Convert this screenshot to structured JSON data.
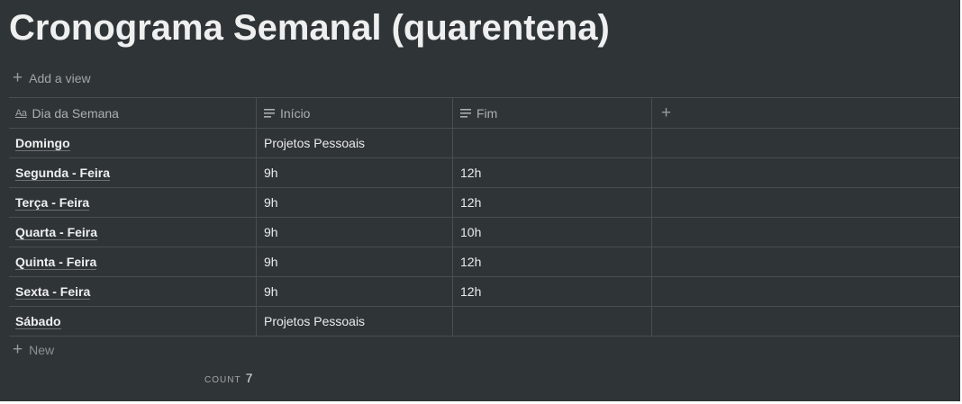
{
  "page": {
    "title": "Cronograma Semanal (quarentena)"
  },
  "toolbar": {
    "add_view_label": "Add a view"
  },
  "table": {
    "columns": [
      {
        "label": "Dia da Semana",
        "icon": "title-aa-icon"
      },
      {
        "label": "Início",
        "icon": "text-lines-icon"
      },
      {
        "label": "Fim",
        "icon": "text-lines-icon"
      }
    ],
    "rows": [
      {
        "dia": "Domingo",
        "inicio": "Projetos Pessoais",
        "fim": ""
      },
      {
        "dia": "Segunda - Feira",
        "inicio": "9h",
        "fim": "12h"
      },
      {
        "dia": "Terça - Feira",
        "inicio": "9h",
        "fim": "12h"
      },
      {
        "dia": "Quarta - Feira",
        "inicio": "9h",
        "fim": "10h"
      },
      {
        "dia": "Quinta - Feira",
        "inicio": "9h",
        "fim": "12h"
      },
      {
        "dia": "Sexta - Feira",
        "inicio": "9h",
        "fim": "12h"
      },
      {
        "dia": "Sábado",
        "inicio": "Projetos Pessoais",
        "fim": ""
      }
    ],
    "new_label": "New",
    "count_label": "COUNT",
    "count_value": "7"
  },
  "colors": {
    "background": "#2f3437",
    "page_border": "#ffffff"
  }
}
